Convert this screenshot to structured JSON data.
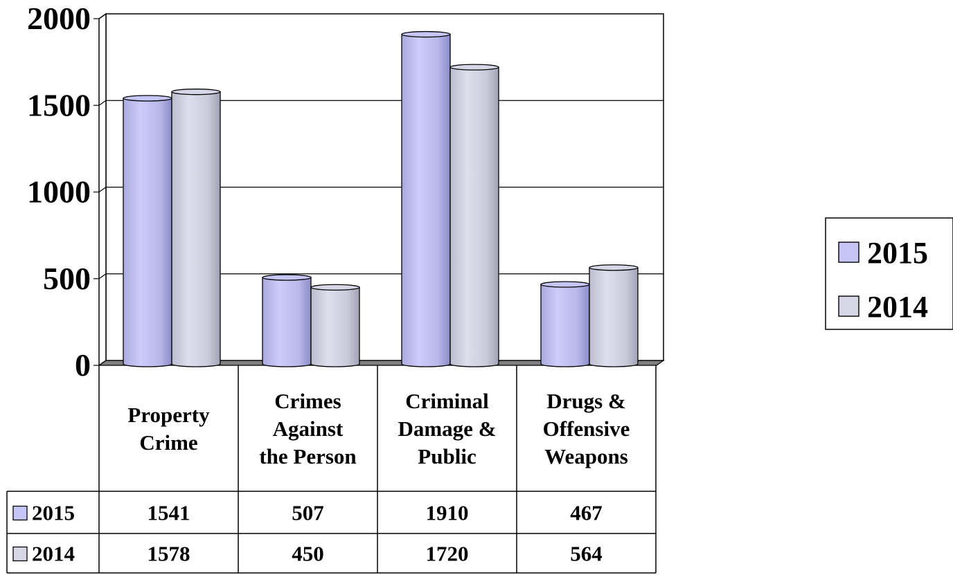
{
  "chart_data": {
    "type": "bar",
    "categories": [
      [
        "Property",
        "Crime"
      ],
      [
        "Crimes",
        "Against",
        "the Person"
      ],
      [
        "Criminal",
        "Damage &",
        "Public"
      ],
      [
        "Drugs &",
        "Offensive",
        "Weapons"
      ]
    ],
    "series": [
      {
        "name": "2015",
        "values": [
          1541,
          507,
          1910,
          467
        ],
        "color": "#c6c6f6",
        "shade": "#8e8ece"
      },
      {
        "name": "2014",
        "values": [
          1578,
          450,
          1720,
          564
        ],
        "color": "#d6d6e6",
        "shade": "#a4a4b8"
      }
    ],
    "yticks": [
      "0",
      "500",
      "1000",
      "1500",
      "2000"
    ],
    "ylim": [
      0,
      2000
    ],
    "grid": true,
    "legend": "right",
    "data_table": true,
    "title": "",
    "xlabel": "",
    "ylabel": ""
  }
}
